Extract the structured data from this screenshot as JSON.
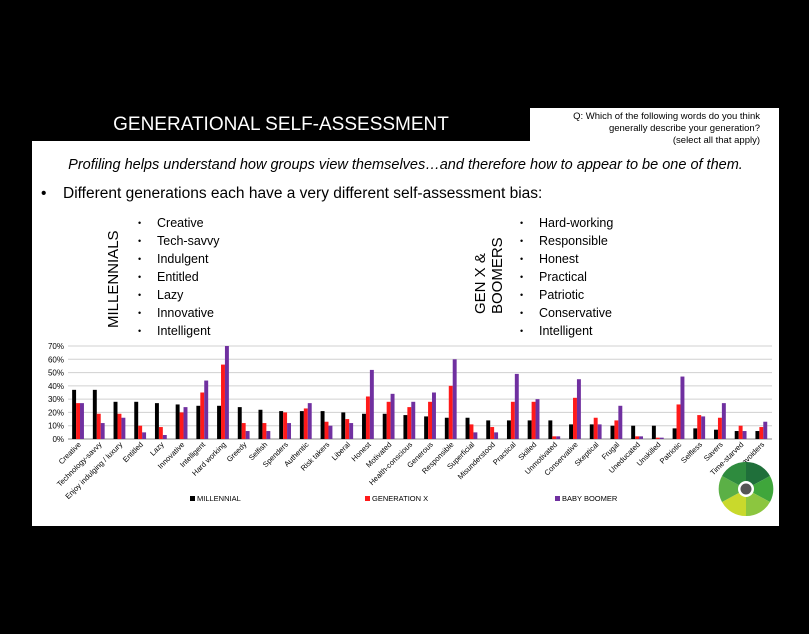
{
  "header": {
    "title": "GENERATIONAL SELF-ASSESSMENT",
    "question_lines": [
      "Q:  Which of the following words do you think",
      "generally describe your generation?",
      "(select all that apply)"
    ]
  },
  "subtitle": "Profiling helps understand how groups view themselves…and therefore how to appear to be one of them.",
  "main_bullet": "Different generations each have a very different self-assessment bias:",
  "millennials": {
    "label": "MILLENNIALS",
    "items": [
      "Creative",
      "Tech-savvy",
      "Indulgent",
      "Entitled",
      "Lazy",
      "Innovative",
      "Intelligent"
    ]
  },
  "genx_boomers": {
    "label_lines": [
      "GEN X &",
      "BOOMERS"
    ],
    "items": [
      "Hard-working",
      "Responsible",
      "Honest",
      "Practical",
      "Patriotic",
      "Conservative",
      "Intelligent"
    ]
  },
  "chart_data": {
    "type": "bar",
    "ylim": [
      0,
      70
    ],
    "yticks": [
      "0%",
      "10%",
      "20%",
      "30%",
      "40%",
      "50%",
      "60%",
      "70%"
    ],
    "grid": true,
    "legend_position": "bottom",
    "categories": [
      "Creative",
      "Technology-savvy",
      "Enjoy indulging / luxury",
      "Entitled",
      "Lazy",
      "Innovative",
      "Intelligent",
      "Hard working",
      "Greedy",
      "Selfish",
      "Spenders",
      "Authentic",
      "Risk takers",
      "Liberal",
      "Honest",
      "Motivated",
      "Health-conscious",
      "Generous",
      "Responsible",
      "Superficial",
      "Misunderstood",
      "Practical",
      "Skilled",
      "Unmotivated",
      "Conservative",
      "Skeptical",
      "Frugal",
      "Uneducated",
      "Unskilled",
      "Patriotic",
      "Selfless",
      "Savers",
      "Time-starved",
      "Risk avoiders"
    ],
    "series": [
      {
        "name": "MILLENNIAL",
        "color": "#000000",
        "values": [
          37,
          37,
          28,
          28,
          27,
          26,
          25,
          25,
          24,
          22,
          21,
          21,
          21,
          20,
          19,
          19,
          18,
          17,
          16,
          16,
          14,
          14,
          14,
          14,
          11,
          11,
          10,
          10,
          10,
          8,
          8,
          7,
          6,
          6
        ]
      },
      {
        "name": "GENERATION X",
        "color": "#ff1a1a",
        "values": [
          27,
          19,
          19,
          10,
          9,
          20,
          35,
          56,
          12,
          12,
          20,
          23,
          13,
          15,
          32,
          28,
          24,
          28,
          40,
          11,
          9,
          28,
          28,
          2,
          31,
          16,
          14,
          2,
          1,
          26,
          18,
          16,
          10,
          9
        ]
      },
      {
        "name": "BABY BOOMER",
        "color": "#7030a0",
        "values": [
          27,
          12,
          16,
          5,
          3,
          24,
          44,
          70,
          6,
          6,
          12,
          27,
          10,
          12,
          52,
          34,
          28,
          35,
          60,
          5,
          5,
          49,
          30,
          2,
          45,
          11,
          25,
          2,
          1,
          47,
          17,
          27,
          6,
          13
        ]
      }
    ]
  },
  "logo": {
    "icon": "circular-segmented-logo",
    "colors": [
      "#1f6f3a",
      "#3fa63b",
      "#8cc63f",
      "#c9d92c"
    ]
  }
}
